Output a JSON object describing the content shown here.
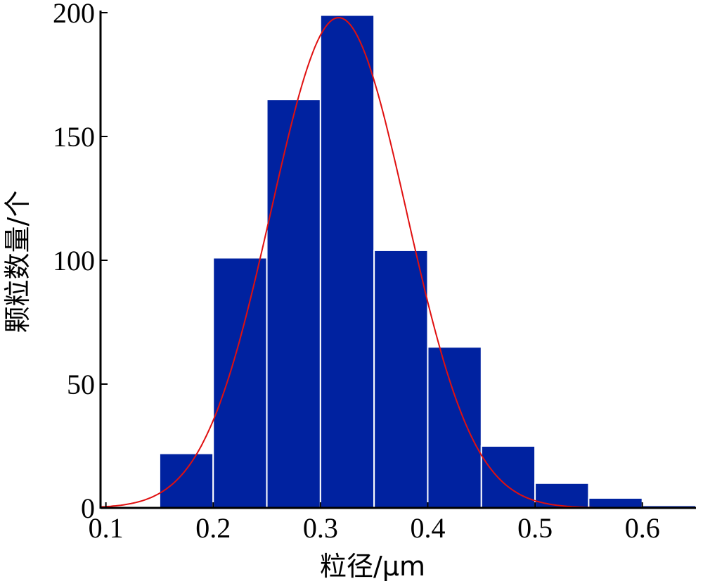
{
  "chart_data": {
    "type": "bar",
    "xlabel": "粒径/μm",
    "ylabel": "颗粒数量/个",
    "xlim": [
      0.095,
      0.65
    ],
    "ylim": [
      0,
      200
    ],
    "xticks": [
      "0.1",
      "0.2",
      "0.3",
      "0.4",
      "0.5",
      "0.6"
    ],
    "yticks": [
      "0",
      "50",
      "100",
      "150",
      "200"
    ],
    "bins": [
      {
        "start": 0.15,
        "end": 0.2,
        "value": 22
      },
      {
        "start": 0.2,
        "end": 0.25,
        "value": 101
      },
      {
        "start": 0.25,
        "end": 0.3,
        "value": 165
      },
      {
        "start": 0.3,
        "end": 0.35,
        "value": 199
      },
      {
        "start": 0.35,
        "end": 0.4,
        "value": 104
      },
      {
        "start": 0.4,
        "end": 0.45,
        "value": 65
      },
      {
        "start": 0.45,
        "end": 0.5,
        "value": 25
      },
      {
        "start": 0.5,
        "end": 0.55,
        "value": 10
      },
      {
        "start": 0.55,
        "end": 0.6,
        "value": 4
      },
      {
        "start": 0.6,
        "end": 0.65,
        "value": 1
      }
    ],
    "fit_curve": {
      "type": "normal",
      "mean": 0.317,
      "sd": 0.063,
      "peak": 198,
      "x_range": [
        0.095,
        0.565
      ]
    },
    "colors": {
      "bar": "#0022a0",
      "bar_edge": "#ffffff",
      "curve": "#e01010",
      "axis": "#000000"
    },
    "grid": false
  }
}
